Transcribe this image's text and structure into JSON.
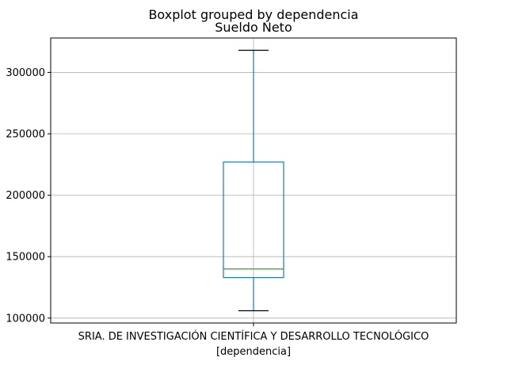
{
  "chart_data": {
    "type": "box",
    "suptitle": "Boxplot grouped by dependencia",
    "title": "Sueldo Neto",
    "xlabel": "[dependencia]",
    "ylabel": "",
    "categories": [
      "SRIA. DE INVESTIGACIÓN CIENTÍFICA Y DESARROLLO TECNOLÓGICO"
    ],
    "boxes": [
      {
        "category": "SRIA. DE INVESTIGACIÓN CIENTÍFICA Y DESARROLLO TECNOLÓGICO",
        "whisker_low": 106000,
        "q1": 133000,
        "median": 140000,
        "q3": 227000,
        "whisker_high": 318000
      }
    ],
    "ylim": [
      96000,
      328000
    ],
    "yticks": [
      100000,
      150000,
      200000,
      250000,
      300000
    ],
    "ytick_labels": [
      "100000",
      "150000",
      "200000",
      "250000",
      "300000"
    ],
    "grid": true,
    "colors": {
      "box": "#1f77b4",
      "median": "#2ca02c",
      "whisker_cap": "#000000",
      "grid": "#b0b0b0"
    }
  }
}
